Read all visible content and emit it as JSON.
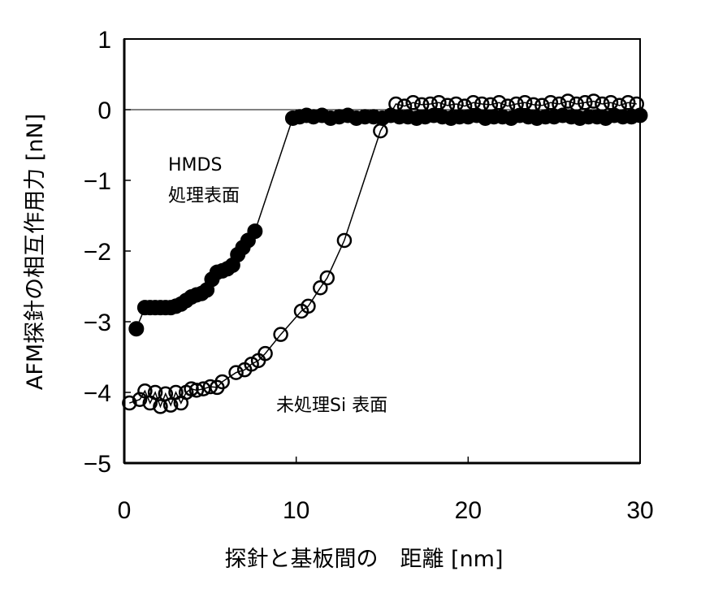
{
  "chart_data": {
    "type": "scatter",
    "xlabel": "探針と基板間の　距離  [nm]",
    "ylabel": "AFM探針の相互作用力  [nN]",
    "xlim": [
      0,
      30
    ],
    "ylim": [
      -5,
      1
    ],
    "xticks": [
      "0",
      "10",
      "20",
      "30"
    ],
    "yticks": [
      "1",
      "0",
      "−1",
      "−2",
      "−3",
      "−4",
      "−5"
    ],
    "grid": false,
    "annotations": {
      "hmds_line1": "HMDS",
      "hmds_line2": "処理表面",
      "untreated": "未処理Si 表面"
    },
    "series": [
      {
        "marker": "filled-circle",
        "color": "#000000",
        "x": [
          0.7,
          1.2,
          1.5,
          1.8,
          2.1,
          2.4,
          2.7,
          3.0,
          3.3,
          3.6,
          3.9,
          4.2,
          4.5,
          4.8,
          5.1,
          5.4,
          5.7,
          6.0,
          6.3,
          6.6,
          6.9,
          7.2,
          7.6,
          9.8,
          10.2,
          10.6,
          11.0,
          11.5,
          12.0,
          12.5,
          13.0,
          13.5,
          14.0,
          14.5,
          15.0,
          15.5,
          16.0,
          16.5,
          17.0,
          17.5,
          18.0,
          18.5,
          19.0,
          19.5,
          20.0,
          20.5,
          21.0,
          21.5,
          22.0,
          22.5,
          23.0,
          23.5,
          24.0,
          24.5,
          25.0,
          25.5,
          26.0,
          26.5,
          27.0,
          27.5,
          28.0,
          28.5,
          29.0,
          29.5,
          30.0
        ],
        "y": [
          -3.1,
          -2.8,
          -2.8,
          -2.8,
          -2.8,
          -2.8,
          -2.8,
          -2.78,
          -2.75,
          -2.7,
          -2.65,
          -2.62,
          -2.6,
          -2.55,
          -2.4,
          -2.3,
          -2.28,
          -2.25,
          -2.2,
          -2.05,
          -1.95,
          -1.85,
          -1.72,
          -0.12,
          -0.1,
          -0.08,
          -0.1,
          -0.08,
          -0.12,
          -0.1,
          -0.08,
          -0.12,
          -0.1,
          -0.1,
          -0.12,
          -0.08,
          -0.1,
          -0.1,
          -0.12,
          -0.1,
          -0.08,
          -0.1,
          -0.12,
          -0.1,
          -0.1,
          -0.08,
          -0.12,
          -0.1,
          -0.1,
          -0.12,
          -0.08,
          -0.1,
          -0.12,
          -0.1,
          -0.1,
          -0.08,
          -0.1,
          -0.12,
          -0.1,
          -0.1,
          -0.12,
          -0.08,
          -0.1,
          -0.1,
          -0.08
        ]
      },
      {
        "marker": "open-circle",
        "color": "#000000",
        "x": [
          0.3,
          0.9,
          1.2,
          1.5,
          1.8,
          2.1,
          2.4,
          2.7,
          3.0,
          3.3,
          3.6,
          3.9,
          4.2,
          4.6,
          5.0,
          5.4,
          5.7,
          6.5,
          7.0,
          7.4,
          7.8,
          8.2,
          9.1,
          10.3,
          10.7,
          11.4,
          11.8,
          12.8,
          14.9,
          15.8,
          16.3,
          16.8,
          17.3,
          17.8,
          18.3,
          18.8,
          19.3,
          19.8,
          20.3,
          20.8,
          21.3,
          21.8,
          22.3,
          22.8,
          23.3,
          23.8,
          24.3,
          24.8,
          25.3,
          25.8,
          26.3,
          26.8,
          27.3,
          27.8,
          28.3,
          28.8,
          29.3,
          29.8
        ],
        "y": [
          -4.15,
          -4.1,
          -3.98,
          -4.15,
          -4.0,
          -4.2,
          -4.02,
          -4.18,
          -4.0,
          -4.15,
          -4.0,
          -3.95,
          -3.97,
          -3.95,
          -3.92,
          -3.93,
          -3.85,
          -3.72,
          -3.68,
          -3.6,
          -3.55,
          -3.45,
          -3.18,
          -2.85,
          -2.78,
          -2.52,
          -2.38,
          -1.85,
          -0.3,
          0.08,
          0.05,
          0.1,
          0.07,
          0.08,
          0.1,
          0.06,
          0.08,
          0.05,
          0.1,
          0.08,
          0.07,
          0.1,
          0.05,
          0.08,
          0.1,
          0.07,
          0.06,
          0.1,
          0.08,
          0.12,
          0.08,
          0.1,
          0.12,
          0.08,
          0.1,
          0.06,
          0.1,
          0.08
        ]
      }
    ]
  }
}
